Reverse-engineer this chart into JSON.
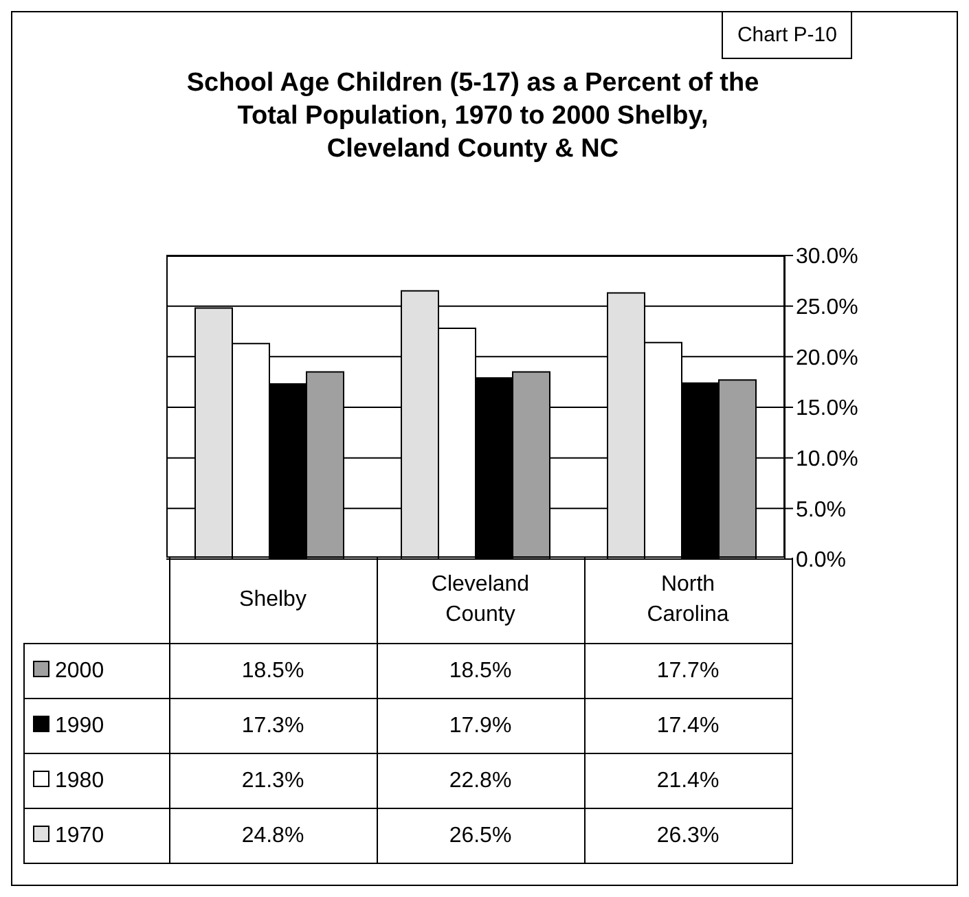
{
  "chart_data": {
    "type": "bar",
    "title": "School Age Children (5-17) as a Percent of the Total Population, 1970 to 2000 Shelby, Cleveland County & NC",
    "annotations": [
      "Chart P-10"
    ],
    "categories": [
      "Shelby",
      "Cleveland County",
      "North Carolina"
    ],
    "series": [
      {
        "name": "1970",
        "color": "#e0e0e0",
        "values": [
          24.8,
          26.5,
          26.3
        ],
        "value_labels": [
          "24.8%",
          "26.5%",
          "26.3%"
        ]
      },
      {
        "name": "1980",
        "color": "#ffffff",
        "values": [
          21.3,
          22.8,
          21.4
        ],
        "value_labels": [
          "21.3%",
          "22.8%",
          "21.4%"
        ]
      },
      {
        "name": "1990",
        "color": "#000000",
        "values": [
          17.3,
          17.9,
          17.4
        ],
        "value_labels": [
          "17.3%",
          "17.9%",
          "17.4%"
        ]
      },
      {
        "name": "2000",
        "color": "#a0a0a0",
        "values": [
          18.5,
          18.5,
          17.7
        ],
        "value_labels": [
          "18.5%",
          "18.5%",
          "17.7%"
        ]
      }
    ],
    "ylim": [
      0,
      30
    ],
    "yticks": [
      {
        "value": 0,
        "label": "0.0%"
      },
      {
        "value": 5,
        "label": "5.0%"
      },
      {
        "value": 10,
        "label": "10.0%"
      },
      {
        "value": 15,
        "label": "15.0%"
      },
      {
        "value": 20,
        "label": "20.0%"
      },
      {
        "value": 25,
        "label": "25.0%"
      },
      {
        "value": 30,
        "label": "30.0%"
      }
    ],
    "grid": "y",
    "legend": "bottom"
  }
}
